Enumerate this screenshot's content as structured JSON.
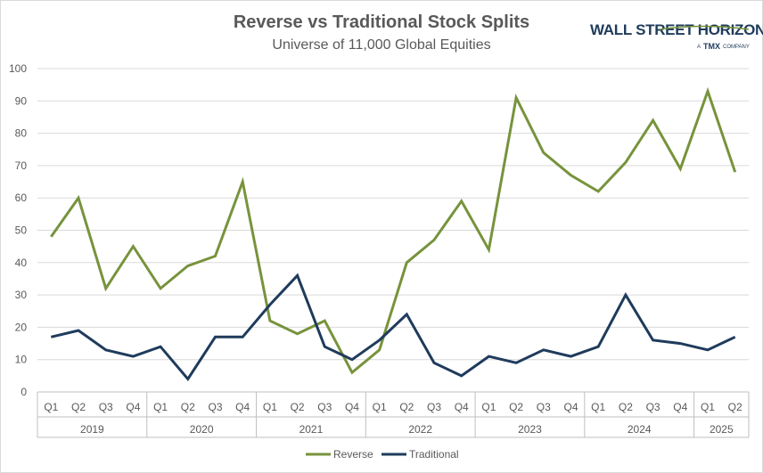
{
  "chart_data": {
    "type": "line",
    "title": "Reverse vs Traditional Stock Splits",
    "subtitle": "Universe of 11,000 Global Equities",
    "ylim": [
      0,
      100
    ],
    "yticks": [
      0,
      10,
      20,
      30,
      40,
      50,
      60,
      70,
      80,
      90,
      100
    ],
    "quarters": [
      "Q1",
      "Q2",
      "Q3",
      "Q4",
      "Q1",
      "Q2",
      "Q3",
      "Q4",
      "Q1",
      "Q2",
      "Q3",
      "Q4",
      "Q1",
      "Q2",
      "Q3",
      "Q4",
      "Q1",
      "Q2",
      "Q3",
      "Q4",
      "Q1",
      "Q2",
      "Q3",
      "Q4",
      "Q1",
      "Q2"
    ],
    "years": [
      {
        "label": "2019",
        "count": 4
      },
      {
        "label": "2020",
        "count": 4
      },
      {
        "label": "2021",
        "count": 4
      },
      {
        "label": "2022",
        "count": 4
      },
      {
        "label": "2023",
        "count": 4
      },
      {
        "label": "2024",
        "count": 4
      },
      {
        "label": "2025",
        "count": 2
      }
    ],
    "series": [
      {
        "name": "Reverse",
        "color": "#77933c",
        "values": [
          48,
          60,
          32,
          45,
          32,
          39,
          42,
          65,
          22,
          18,
          22,
          6,
          13,
          40,
          47,
          59,
          44,
          91,
          74,
          67,
          62,
          71,
          84,
          69,
          93,
          68
        ]
      },
      {
        "name": "Traditional",
        "color": "#1f3b5c",
        "values": [
          17,
          19,
          13,
          11,
          14,
          4,
          17,
          17,
          27,
          36,
          14,
          10,
          16,
          24,
          9,
          5,
          11,
          9,
          13,
          11,
          14,
          30,
          16,
          15,
          13,
          17
        ]
      }
    ],
    "grid": true,
    "legend": "bottom-center"
  },
  "logo": {
    "name": "WALL STREET HORIZON",
    "tagline_prefix": "A",
    "tagline_brand": "TMX",
    "tagline_suffix": "COMPANY"
  }
}
